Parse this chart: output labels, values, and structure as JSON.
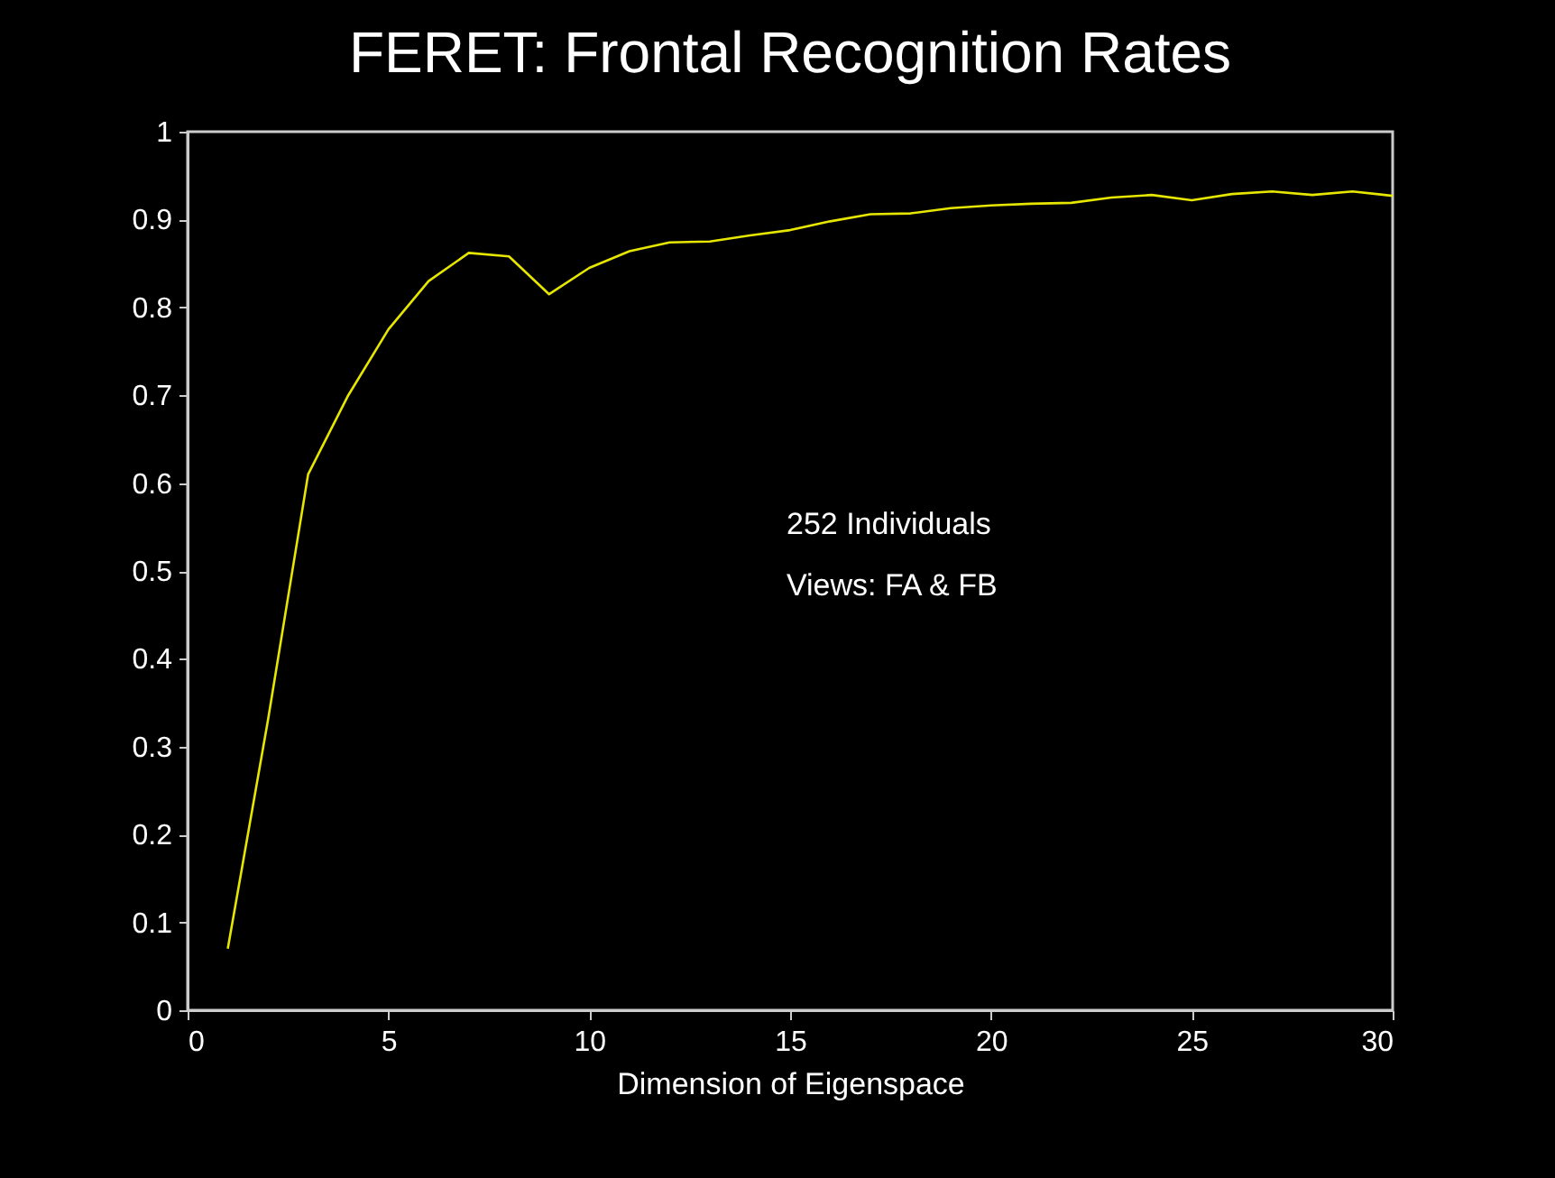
{
  "chart_data": {
    "type": "line",
    "title": "FERET:  Frontal Recognition Rates",
    "xlabel": "Dimension of Eigenspace",
    "x": [
      1,
      2,
      3,
      4,
      5,
      6,
      7,
      8,
      9,
      10,
      11,
      12,
      13,
      14,
      15,
      16,
      17,
      18,
      19,
      20,
      21,
      22,
      23,
      24,
      25,
      26,
      27,
      28,
      29,
      30
    ],
    "series": [
      {
        "color": "#e6e600",
        "values": [
          0.07,
          0.33,
          0.61,
          0.7,
          0.775,
          0.83,
          0.862,
          0.858,
          0.815,
          0.845,
          0.864,
          0.874,
          0.875,
          0.882,
          0.888,
          0.898,
          0.906,
          0.907,
          0.913,
          0.916,
          0.918,
          0.919,
          0.925,
          0.928,
          0.922,
          0.929,
          0.932,
          0.928,
          0.932,
          0.927
        ]
      }
    ],
    "xlim": [
      0,
      30
    ],
    "xticks": [
      0,
      5,
      10,
      15,
      20,
      25,
      30
    ],
    "ylim": [
      0,
      1
    ],
    "yticks": [
      0,
      0.1,
      0.2,
      0.3,
      0.4,
      0.5,
      0.6,
      0.7,
      0.8,
      0.9,
      1
    ],
    "annotations": [
      "252 Individuals",
      " Views: FA & FB"
    ]
  }
}
